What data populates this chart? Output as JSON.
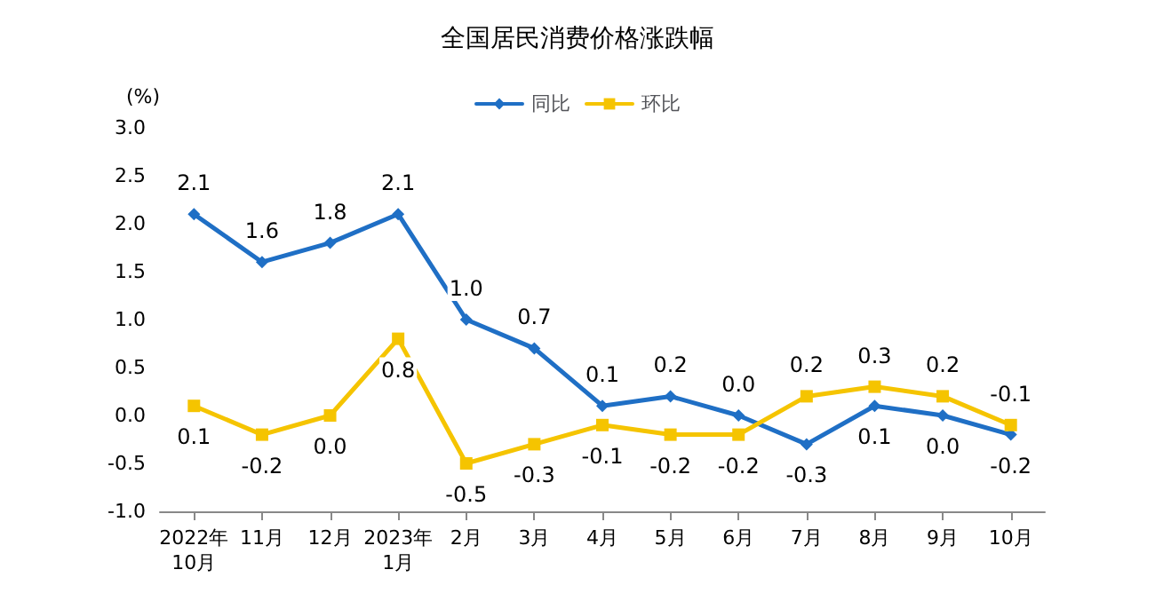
{
  "chart_data": {
    "type": "line",
    "title": "全国居民消费价格涨跌幅",
    "ylabel": "(%)",
    "categories": [
      "2022年\n10月",
      "11月",
      "12月",
      "2023年\n1月",
      "2月",
      "3月",
      "4月",
      "5月",
      "6月",
      "7月",
      "8月",
      "9月",
      "10月"
    ],
    "series": [
      {
        "name": "同比",
        "color": "#1f6fc5",
        "marker": "diamond",
        "values": [
          2.1,
          1.6,
          1.8,
          2.1,
          1.0,
          0.7,
          0.1,
          0.2,
          0.0,
          -0.3,
          0.1,
          0.0,
          -0.2
        ],
        "value_labels": [
          "2.1",
          "1.6",
          "1.8",
          "2.1",
          "1.0",
          "0.7",
          "0.1",
          "0.2",
          "0.0",
          "-0.3",
          "0.1",
          "0.0",
          "-0.2"
        ]
      },
      {
        "name": "环比",
        "color": "#f5c400",
        "marker": "square",
        "values": [
          0.1,
          -0.2,
          0.0,
          0.8,
          -0.5,
          -0.3,
          -0.1,
          -0.2,
          -0.2,
          0.2,
          0.3,
          0.2,
          -0.1
        ],
        "value_labels": [
          "0.1",
          "-0.2",
          "0.0",
          "0.8",
          "-0.5",
          "-0.3",
          "-0.1",
          "-0.2",
          "-0.2",
          "0.2",
          "0.3",
          "0.2",
          "-0.1"
        ]
      }
    ],
    "ylim": [
      -1,
      3
    ],
    "yticks": [
      {
        "value": -1,
        "label": "-1.0"
      },
      {
        "value": -0.5,
        "label": "-0.5"
      },
      {
        "value": 0,
        "label": "0.0"
      },
      {
        "value": 0.5,
        "label": "0.5"
      },
      {
        "value": 1,
        "label": "1.0"
      },
      {
        "value": 1.5,
        "label": "1.5"
      },
      {
        "value": 2,
        "label": "2.0"
      },
      {
        "value": 2.5,
        "label": "2.5"
      },
      {
        "value": 3,
        "label": "3.0"
      }
    ],
    "data_labels": true,
    "legend": "top",
    "grid": false,
    "line_style": "solid"
  }
}
